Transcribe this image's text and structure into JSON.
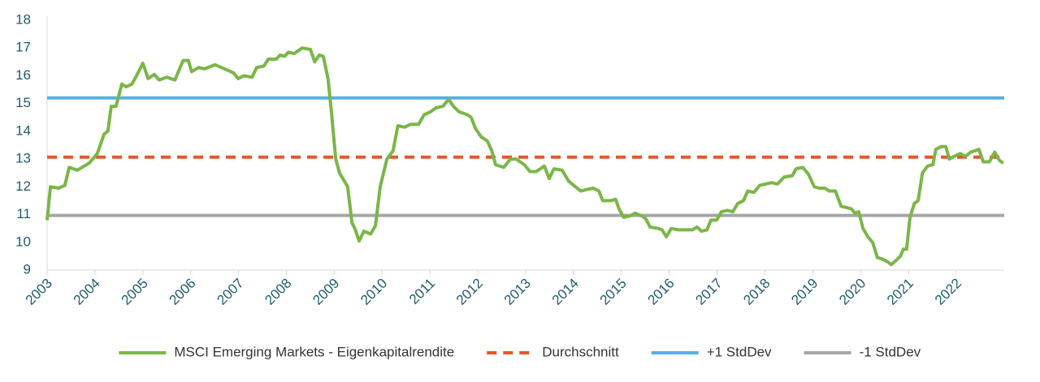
{
  "chart_data": {
    "type": "line",
    "xlim": [
      2003,
      2023
    ],
    "xticks": [
      2003,
      2004,
      2005,
      2006,
      2007,
      2008,
      2009,
      2010,
      2011,
      2012,
      2013,
      2014,
      2015,
      2016,
      2017,
      2018,
      2019,
      2020,
      2021,
      2022
    ],
    "ylim": [
      9,
      18
    ],
    "yticks": [
      9,
      10,
      11,
      12,
      13,
      14,
      15,
      16,
      17,
      18
    ],
    "legend": "bottom",
    "series": [
      {
        "name": "MSCI Emerging Markets - Eigenkapitalrendite",
        "color": "#7ab648",
        "x": [
          2003,
          2003.07,
          2003.24,
          2003.37,
          2003.46,
          2003.63,
          2003.88,
          2004.05,
          2004.19,
          2004.27,
          2004.34,
          2004.44,
          2004.56,
          2004.65,
          2004.77,
          2004.87,
          2005.0,
          2005.11,
          2005.24,
          2005.34,
          2005.5,
          2005.67,
          2005.84,
          2005.95,
          2006.02,
          2006.17,
          2006.29,
          2006.51,
          2006.77,
          2006.9,
          2006.99,
          2007.11,
          2007.28,
          2007.38,
          2007.53,
          2007.62,
          2007.79,
          2007.87,
          2007.96,
          2008.04,
          2008.16,
          2008.33,
          2008.5,
          2008.59,
          2008.69,
          2008.77,
          2008.87,
          2008.94,
          2009.03,
          2009.11,
          2009.28,
          2009.37,
          2009.43,
          2009.52,
          2009.62,
          2009.76,
          2009.86,
          2009.96,
          2010.1,
          2010.23,
          2010.33,
          2010.47,
          2010.59,
          2010.76,
          2010.88,
          2011.01,
          2011.13,
          2011.27,
          2011.39,
          2011.49,
          2011.61,
          2011.78,
          2011.86,
          2011.95,
          2012.07,
          2012.2,
          2012.29,
          2012.37,
          2012.54,
          2012.68,
          2012.8,
          2012.97,
          2013.09,
          2013.22,
          2013.39,
          2013.49,
          2013.59,
          2013.76,
          2013.9,
          2014.04,
          2014.15,
          2014.27,
          2014.41,
          2014.53,
          2014.61,
          2014.78,
          2014.88,
          2014.95,
          2015.05,
          2015.17,
          2015.29,
          2015.43,
          2015.51,
          2015.6,
          2015.77,
          2015.85,
          2015.94,
          2016.04,
          2016.19,
          2016.36,
          2016.48,
          2016.58,
          2016.67,
          2016.79,
          2016.87,
          2016.99,
          2017.09,
          2017.21,
          2017.33,
          2017.43,
          2017.55,
          2017.64,
          2017.77,
          2017.89,
          2018.01,
          2018.14,
          2018.26,
          2018.4,
          2018.57,
          2018.65,
          2018.79,
          2018.91,
          2019.03,
          2019.13,
          2019.25,
          2019.34,
          2019.47,
          2019.59,
          2019.71,
          2019.81,
          2019.88,
          2019.96,
          2020.05,
          2020.15,
          2020.25,
          2020.35,
          2020.45,
          2020.56,
          2020.64,
          2020.74,
          2020.83,
          2020.89,
          2020.96,
          2021.03,
          2021.12,
          2021.2,
          2021.29,
          2021.4,
          2021.51,
          2021.57,
          2021.68,
          2021.78,
          2021.85,
          2021.96,
          2022.08,
          2022.19,
          2022.3,
          2022.39,
          2022.47,
          2022.56,
          2022.69,
          2022.8,
          2022.9,
          2022.98
        ],
        "values": [
          10.8,
          12.0,
          11.95,
          12.05,
          12.7,
          12.6,
          12.85,
          13.2,
          13.9,
          14.0,
          14.9,
          14.9,
          15.7,
          15.6,
          15.7,
          16.0,
          16.45,
          15.9,
          16.05,
          15.85,
          15.95,
          15.85,
          16.55,
          16.55,
          16.15,
          16.3,
          16.25,
          16.4,
          16.2,
          16.1,
          15.9,
          16.0,
          15.95,
          16.3,
          16.35,
          16.6,
          16.6,
          16.75,
          16.7,
          16.85,
          16.8,
          17.0,
          16.95,
          16.5,
          16.75,
          16.7,
          15.9,
          14.7,
          13.0,
          12.5,
          12.0,
          10.7,
          10.5,
          10.05,
          10.4,
          10.3,
          10.6,
          12.0,
          13.0,
          13.3,
          14.2,
          14.15,
          14.25,
          14.25,
          14.6,
          14.7,
          14.85,
          14.9,
          15.15,
          14.9,
          14.7,
          14.6,
          14.5,
          14.1,
          13.8,
          13.65,
          13.3,
          12.8,
          12.7,
          13.0,
          13.0,
          12.8,
          12.55,
          12.55,
          12.75,
          12.3,
          12.65,
          12.6,
          12.2,
          12.0,
          11.85,
          11.9,
          11.95,
          11.85,
          11.5,
          11.5,
          11.55,
          11.2,
          10.9,
          10.95,
          11.05,
          10.95,
          10.85,
          10.55,
          10.5,
          10.45,
          10.2,
          10.5,
          10.45,
          10.45,
          10.45,
          10.55,
          10.4,
          10.45,
          10.8,
          10.8,
          11.1,
          11.15,
          11.1,
          11.4,
          11.5,
          11.85,
          11.8,
          12.05,
          12.1,
          12.15,
          12.1,
          12.35,
          12.4,
          12.65,
          12.7,
          12.45,
          12.0,
          11.95,
          11.95,
          11.85,
          11.85,
          11.3,
          11.25,
          11.2,
          11.05,
          11.1,
          10.5,
          10.2,
          10.0,
          9.45,
          9.4,
          9.3,
          9.2,
          9.35,
          9.5,
          9.75,
          9.75,
          10.9,
          11.4,
          11.5,
          12.5,
          12.75,
          12.8,
          13.35,
          13.45,
          13.45,
          13.0,
          13.1,
          13.2,
          13.1,
          13.25,
          13.3,
          13.35,
          12.9,
          12.9,
          13.25,
          12.95,
          12.85
        ]
      },
      {
        "name": "Durchschnitt",
        "color": "#e8562a",
        "dash": true,
        "x": [
          2003,
          2023
        ],
        "values": [
          13.07,
          13.07
        ]
      },
      {
        "name": "+1 StdDev",
        "color": "#5aaee0",
        "x": [
          2003,
          2023
        ],
        "values": [
          15.2,
          15.2
        ]
      },
      {
        "name": "-1 StdDev",
        "color": "#a6a6a6",
        "x": [
          2003,
          2023
        ],
        "values": [
          10.97,
          10.97
        ]
      }
    ]
  }
}
